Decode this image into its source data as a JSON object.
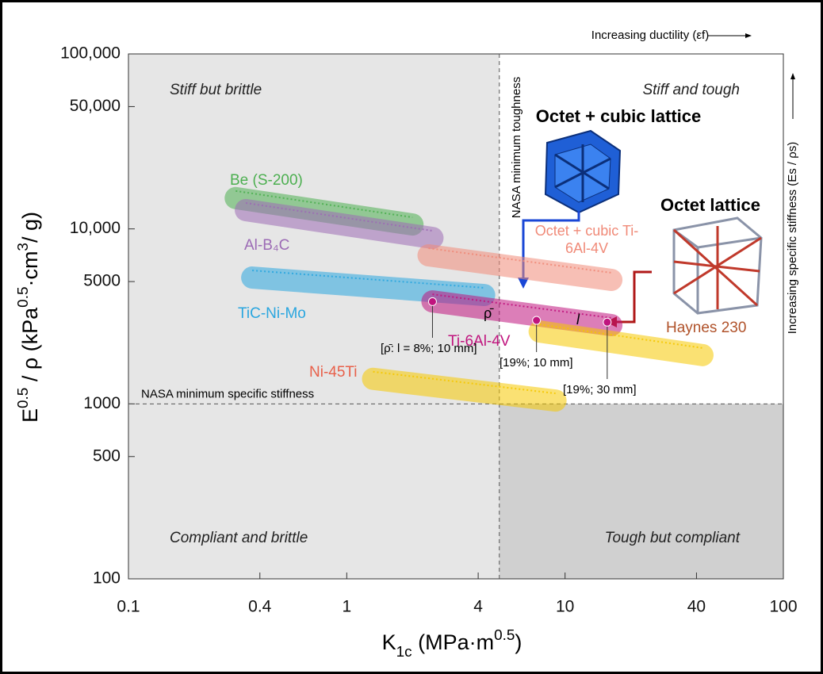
{
  "chart_data": {
    "type": "region",
    "x_label": [
      "K",
      "1c",
      "   (MPa·m",
      "0.5",
      ")"
    ],
    "y_label": [
      "E",
      "0.5",
      " / ρ   (kPa",
      "0.5",
      "·cm",
      "3",
      "/ g)"
    ],
    "log_x": true,
    "log_y": true,
    "xlim": [
      0.1,
      100
    ],
    "ylim": [
      100,
      100000
    ],
    "xticks": [
      0.1,
      0.4,
      1,
      4,
      10,
      40,
      100
    ],
    "yticks": [
      100,
      500,
      {
        "value": 1000,
        "label": "1000"
      },
      {
        "value": 5000,
        "label": "5000"
      },
      {
        "value": 10000,
        "label": "10,000"
      },
      {
        "value": 50000,
        "label": "50,000"
      },
      {
        "value": 100000,
        "label": "100,000"
      }
    ],
    "threshold_x": {
      "value": 5,
      "label": "NASA minimum toughness"
    },
    "threshold_y": {
      "value": 1000,
      "label": "NASA minimum specific stiffness"
    },
    "quadrants": [
      "Stiff but brittle",
      "Stiff and tough",
      "Compliant and brittle",
      "Tough but compliant"
    ],
    "series": [
      {
        "name": "Be (S-200)",
        "color": "#4caf50",
        "x": [
          0.31,
          2.0
        ],
        "y": [
          15000,
          10600
        ]
      },
      {
        "name": "Al-B₄C",
        "color": "#9c6bb5",
        "x": [
          0.345,
          2.47
        ],
        "y": [
          12800,
          8880
        ]
      },
      {
        "name": "TiC-Ni-Mo",
        "color": "#2aa6df",
        "x": [
          0.369,
          4.26
        ],
        "y": [
          5270,
          4190
        ]
      },
      {
        "name": "Octet + cubic Ti-6Al-4V",
        "color": "#f08a78",
        "x": [
          2.37,
          16.3
        ],
        "y": [
          7060,
          5110
        ]
      },
      {
        "name": "Ti-6Al-4V",
        "color": "#c0147e",
        "x": [
          2.47,
          16.3
        ],
        "y": [
          3850,
          2820
        ]
      },
      {
        "name": "Haynes 230",
        "color": "#f5c800",
        "x": [
          7.65,
          42.6
        ],
        "y": [
          2590,
          1900
        ]
      },
      {
        "name": "Ni-45Ti",
        "color": "#f5c800",
        "x": [
          1.32,
          9.04
        ],
        "y": [
          1390,
          1045
        ]
      }
    ],
    "points": [
      {
        "label": "[ρ̄: l = 8%; 10 mm]",
        "x": 2.47,
        "y": 3840
      },
      {
        "label": "[19%; 10 mm]",
        "x": 7.4,
        "y": 3000
      },
      {
        "label": "[19%; 30 mm]",
        "x": 15.6,
        "y": 2930
      }
    ],
    "curve_labels": [
      "ρ̄",
      "l"
    ],
    "insets": [
      "Octet + cubic lattice",
      "Octet lattice"
    ],
    "annotations": [
      "Increasing ductility (εf)",
      "Increasing specific stiffness (Es / ρs)"
    ]
  }
}
